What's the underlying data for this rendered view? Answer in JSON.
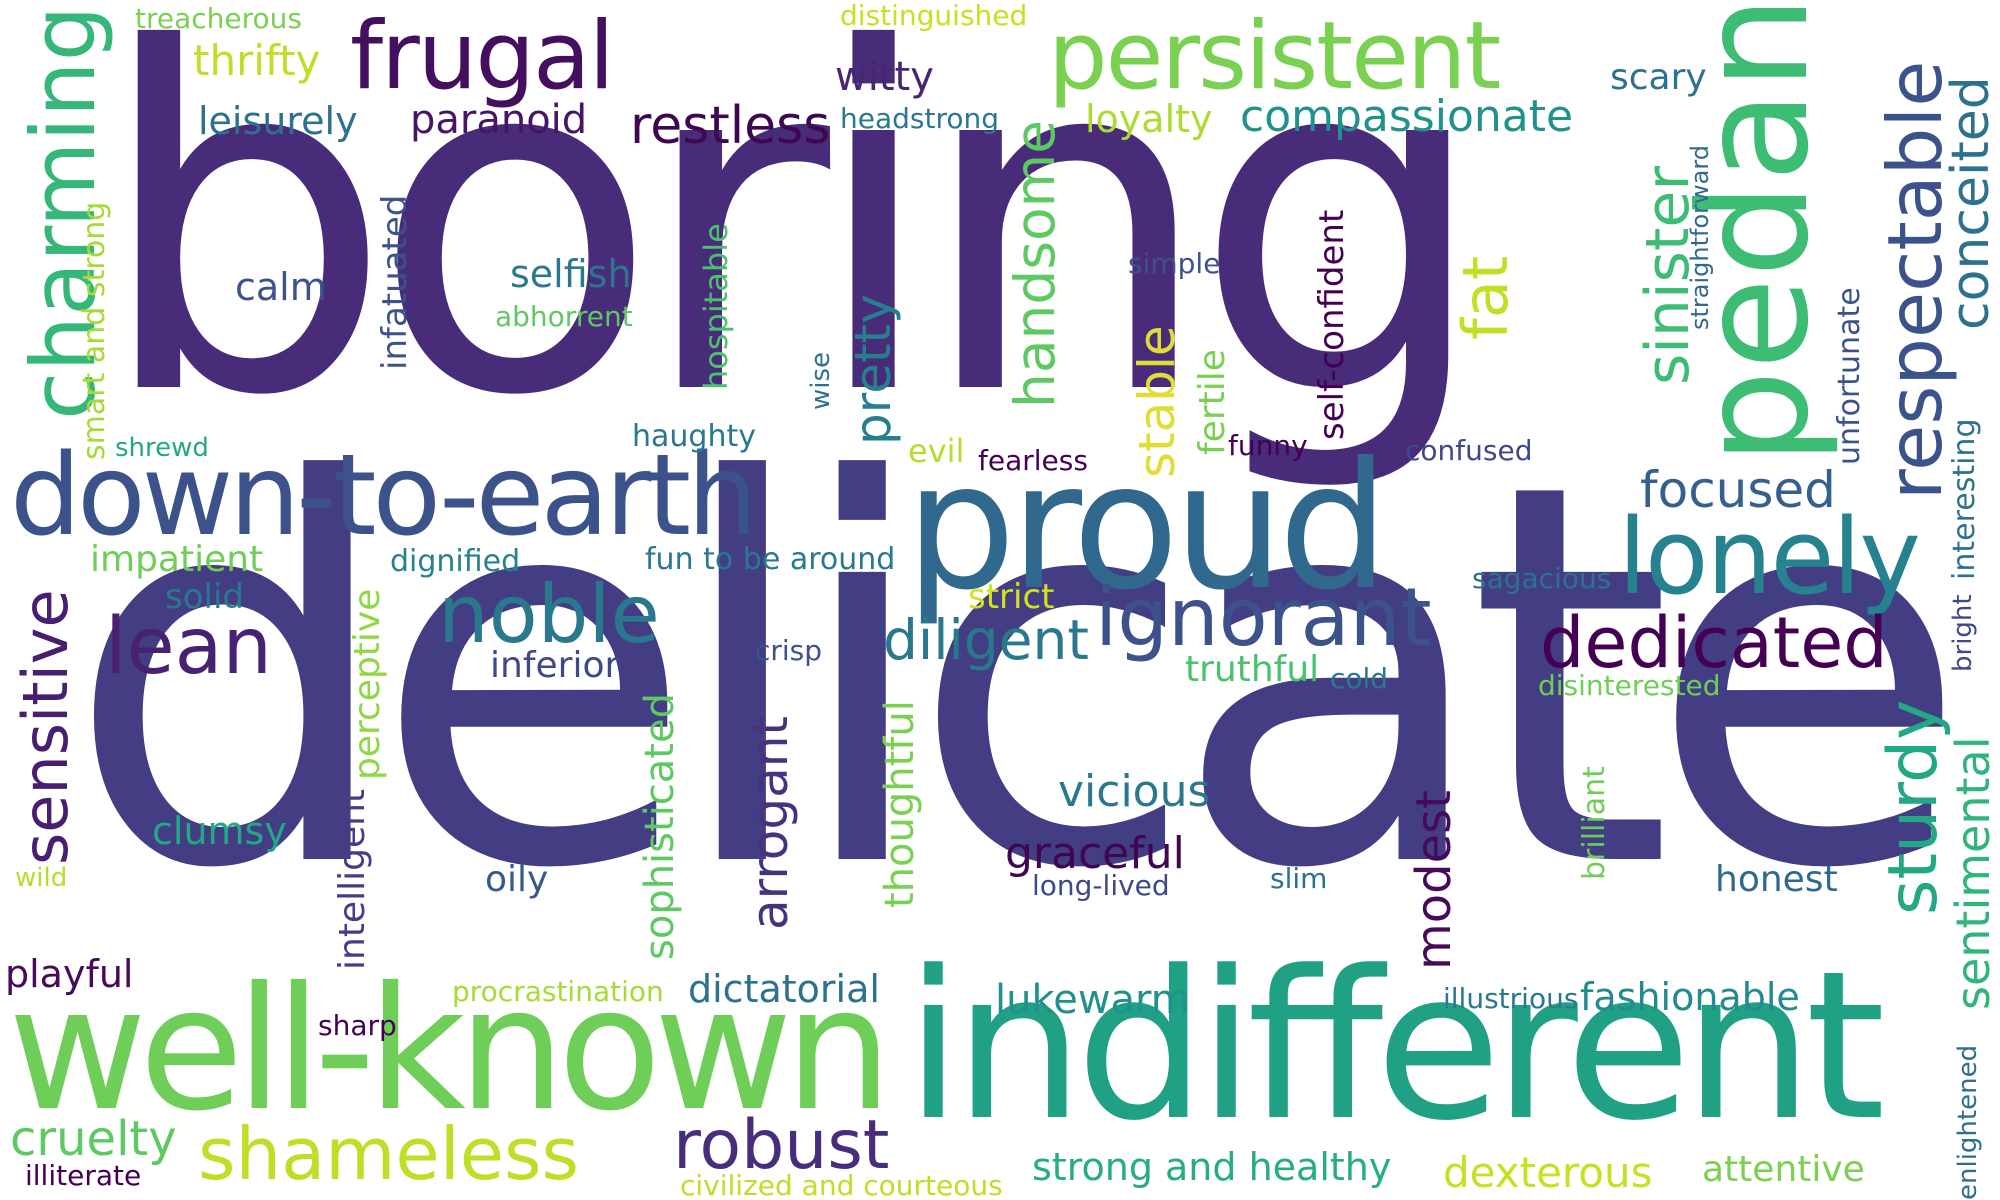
{
  "words": [
    {
      "text": "boring",
      "color": "#482c7a"
    },
    {
      "text": "delicate",
      "color": "#433d84"
    },
    {
      "text": "indifferent",
      "color": "#20a186"
    },
    {
      "text": "well-known",
      "color": "#6ece58"
    },
    {
      "text": "proud",
      "color": "#30688e"
    },
    {
      "text": "down-to-earth",
      "color": "#3b528b"
    },
    {
      "text": "frugal",
      "color": "#440f5e"
    },
    {
      "text": "pedantic",
      "color": "#3dbc74"
    },
    {
      "text": "persistent",
      "color": "#7ad151"
    },
    {
      "text": "charming",
      "color": "#35b779"
    },
    {
      "text": "lonely",
      "color": "#26828e"
    },
    {
      "text": "ignorant",
      "color": "#3b528b"
    },
    {
      "text": "dedicated",
      "color": "#440154"
    },
    {
      "text": "respectable",
      "color": "#3b528b"
    },
    {
      "text": "noble",
      "color": "#2a788e"
    },
    {
      "text": "lean",
      "color": "#482173"
    },
    {
      "text": "shameless",
      "color": "#bddf26"
    },
    {
      "text": "robust",
      "color": "#472d7b"
    },
    {
      "text": "sensitive",
      "color": "#481f70"
    },
    {
      "text": "sturdy",
      "color": "#22a884"
    },
    {
      "text": "sinister",
      "color": "#3dbc74"
    },
    {
      "text": "handsome",
      "color": "#5ec962"
    },
    {
      "text": "diligent",
      "color": "#2a788e"
    },
    {
      "text": "restless",
      "color": "#3e0751"
    },
    {
      "text": "compassionate",
      "color": "#21918c"
    },
    {
      "text": "conceited",
      "color": "#2c728e"
    },
    {
      "text": "focused",
      "color": "#355f8d"
    },
    {
      "text": "arrogant",
      "color": "#46327e"
    },
    {
      "text": "fat",
      "color": "#c2df23"
    },
    {
      "text": "sentimental",
      "color": "#2fb47c"
    },
    {
      "text": "modest",
      "color": "#460a5d"
    },
    {
      "text": "cruelty",
      "color": "#5ec962"
    },
    {
      "text": "pretty",
      "color": "#277f8e"
    },
    {
      "text": "sophisticated",
      "color": "#5ec962"
    },
    {
      "text": "stable",
      "color": "#e1dd37"
    },
    {
      "text": "thoughtful",
      "color": "#7ad151"
    },
    {
      "text": "graceful",
      "color": "#3e0751"
    },
    {
      "text": "vicious",
      "color": "#2a788e"
    },
    {
      "text": "strong and healthy",
      "color": "#27ad81"
    },
    {
      "text": "dexterous",
      "color": "#c8e020"
    },
    {
      "text": "lukewarm",
      "color": "#21918c"
    },
    {
      "text": "fashionable",
      "color": "#238a8d"
    },
    {
      "text": "dictatorial",
      "color": "#2c728e"
    },
    {
      "text": "self-confident",
      "color": "#440154"
    },
    {
      "text": "thrifty",
      "color": "#bddf26"
    },
    {
      "text": "witty",
      "color": "#482475"
    },
    {
      "text": "paranoid",
      "color": "#481467"
    },
    {
      "text": "leisurely",
      "color": "#2c728e"
    },
    {
      "text": "loyalty",
      "color": "#addc30"
    },
    {
      "text": "scary",
      "color": "#2c728e"
    },
    {
      "text": "honest",
      "color": "#31688e"
    },
    {
      "text": "attentive",
      "color": "#7ad151"
    },
    {
      "text": "perceptive",
      "color": "#8fd744"
    },
    {
      "text": "intelligent",
      "color": "#433e85"
    },
    {
      "text": "clumsy",
      "color": "#22a884"
    },
    {
      "text": "infatuated",
      "color": "#3b528b"
    },
    {
      "text": "smart and strong",
      "color": "#a5db36"
    },
    {
      "text": "hospitable",
      "color": "#4ac16d"
    },
    {
      "text": "unfortunate",
      "color": "#3b528b"
    },
    {
      "text": "selfish",
      "color": "#2a788e"
    },
    {
      "text": "calm",
      "color": "#3b528b"
    },
    {
      "text": "playful",
      "color": "#460a5d"
    },
    {
      "text": "inferior",
      "color": "#3e4989"
    },
    {
      "text": "oily",
      "color": "#38598c"
    },
    {
      "text": "solid",
      "color": "#2a788e"
    },
    {
      "text": "impatient",
      "color": "#6ece58"
    },
    {
      "text": "interesting",
      "color": "#2c728e"
    },
    {
      "text": "enlightened",
      "color": "#2d708e"
    },
    {
      "text": "brilliant",
      "color": "#6ece58"
    },
    {
      "text": "truthful",
      "color": "#4ac16d"
    },
    {
      "text": "strict",
      "color": "#d2e21b"
    },
    {
      "text": "evil",
      "color": "#b5de2b"
    },
    {
      "text": "fearless",
      "color": "#440154"
    },
    {
      "text": "funny",
      "color": "#440154"
    },
    {
      "text": "confused",
      "color": "#3e4989"
    },
    {
      "text": "dignified",
      "color": "#26828e"
    },
    {
      "text": "fun to be around",
      "color": "#2a788e"
    },
    {
      "text": "sagacious",
      "color": "#2c728e"
    },
    {
      "text": "illustrious",
      "color": "#2a788e"
    },
    {
      "text": "headstrong",
      "color": "#2a788e"
    },
    {
      "text": "distinguished",
      "color": "#c8e020"
    },
    {
      "text": "treacherous",
      "color": "#7ad151"
    },
    {
      "text": "procrastination",
      "color": "#a5db36"
    },
    {
      "text": "civilized and courteous",
      "color": "#bddf26"
    },
    {
      "text": "illiterate",
      "color": "#440154"
    },
    {
      "text": "wild",
      "color": "#b5de2b"
    },
    {
      "text": "sharp",
      "color": "#440154"
    },
    {
      "text": "slim",
      "color": "#2c728e"
    },
    {
      "text": "long-lived",
      "color": "#3e4989"
    },
    {
      "text": "crisp",
      "color": "#3b528b"
    },
    {
      "text": "cold",
      "color": "#2a788e"
    },
    {
      "text": "disinterested",
      "color": "#6ece58"
    },
    {
      "text": "simple",
      "color": "#3b528b"
    },
    {
      "text": "abhorrent",
      "color": "#5ec962"
    },
    {
      "text": "shrewd",
      "color": "#22a884"
    },
    {
      "text": "haughty",
      "color": "#2a788e"
    },
    {
      "text": "wise",
      "color": "#2c728e"
    },
    {
      "text": "straightforward",
      "color": "#31688e"
    },
    {
      "text": "bright",
      "color": "#3e4989"
    },
    {
      "text": "fertile",
      "color": "#7ad151"
    }
  ]
}
